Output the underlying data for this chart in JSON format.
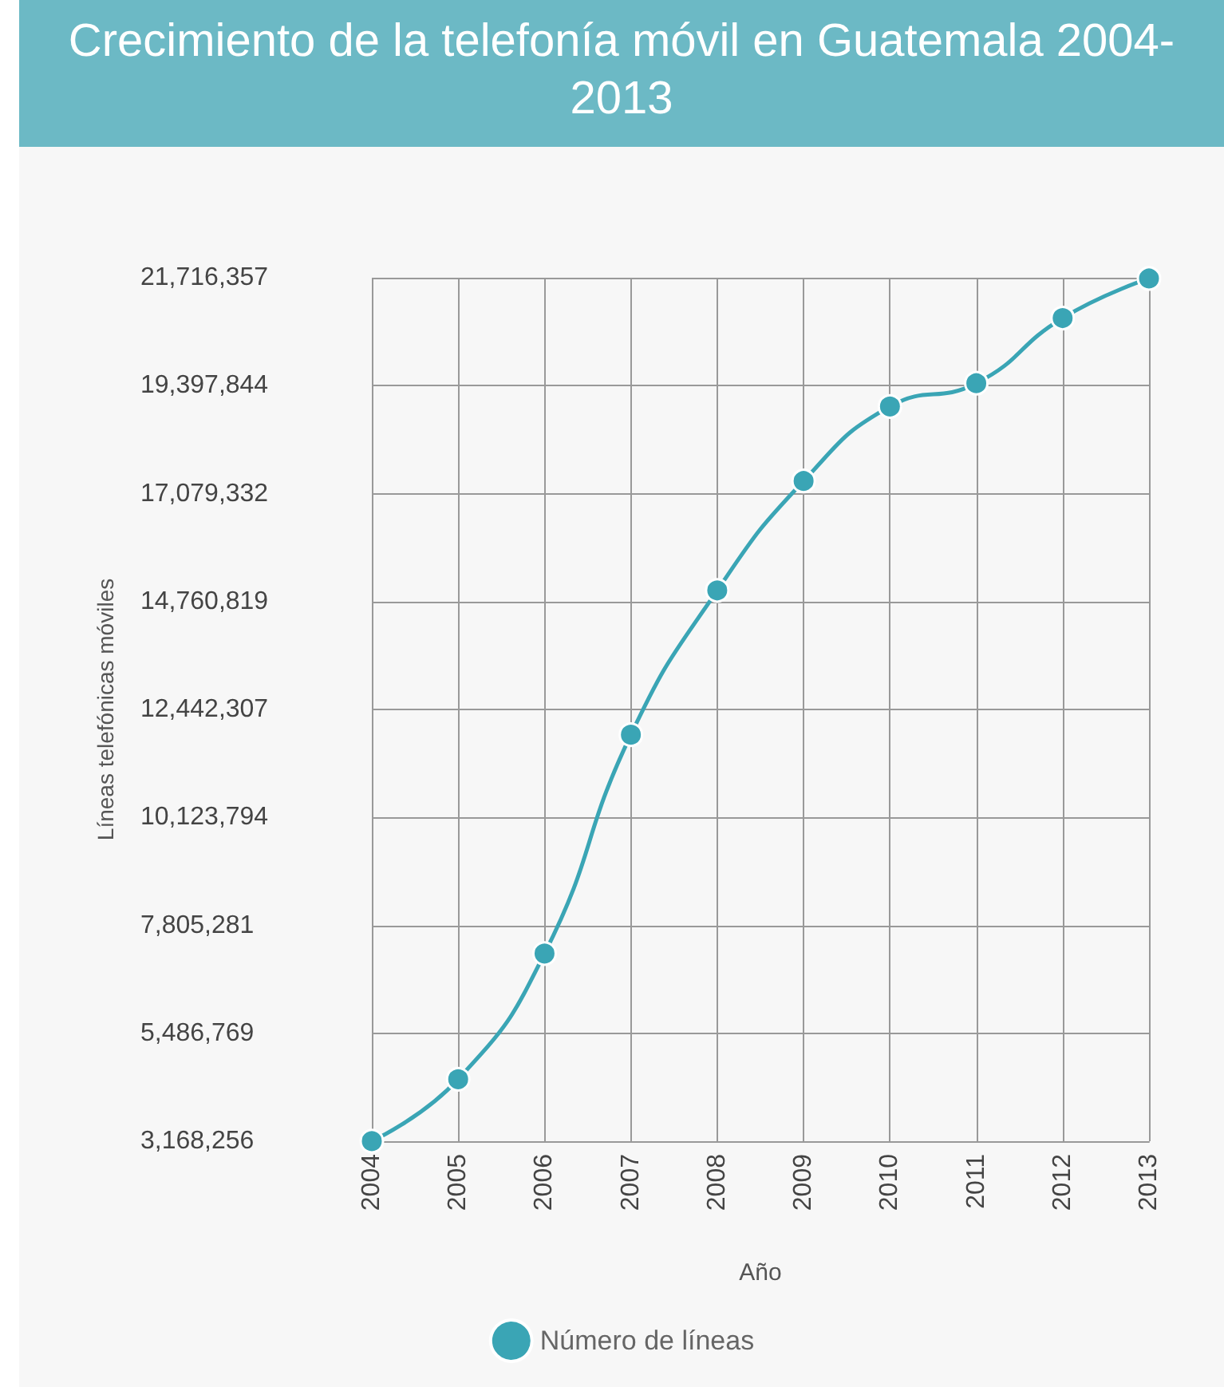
{
  "chart_data": {
    "type": "line",
    "title": "Crecimiento de la telefonía móvil en Guatemala 2004-2013",
    "xlabel": "Año",
    "ylabel": "Líneas telefónicas móviles",
    "categories": [
      "2004",
      "2005",
      "2006",
      "2007",
      "2008",
      "2009",
      "2010",
      "2011",
      "2012",
      "2013"
    ],
    "series": [
      {
        "name": "Número de líneas",
        "color": "#3aa5b5",
        "values": [
          3170000,
          4500000,
          7200000,
          11900000,
          15000000,
          17350000,
          18950000,
          19450000,
          20850000,
          21700000
        ]
      }
    ],
    "ylim": [
      3168256,
      21716357
    ],
    "yticks": [
      {
        "value": 3168256,
        "label": "3,168,256"
      },
      {
        "value": 5486769,
        "label": "5,486,769"
      },
      {
        "value": 7805281,
        "label": "7,805,281"
      },
      {
        "value": 10123794,
        "label": "10,123,794"
      },
      {
        "value": 12442307,
        "label": "12,442,307"
      },
      {
        "value": 14760819,
        "label": "14,760,819"
      },
      {
        "value": 17079332,
        "label": "17,079,332"
      },
      {
        "value": 19397844,
        "label": "19,397,844"
      },
      {
        "value": 21716357,
        "label": "21,716,357"
      }
    ],
    "grid": true,
    "legend": "bottom",
    "marker": "circle",
    "line_style": "solid"
  }
}
